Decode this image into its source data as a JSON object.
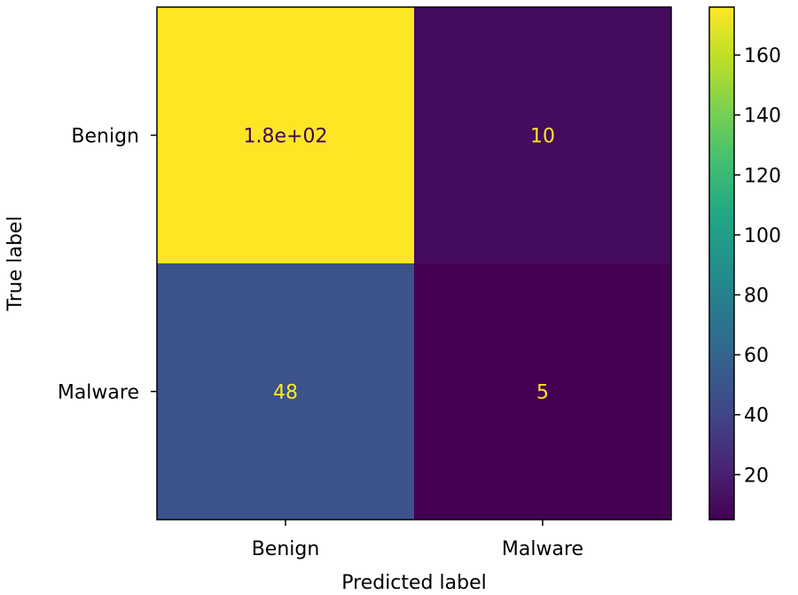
{
  "chart_data": {
    "type": "heatmap",
    "xlabel": "Predicted label",
    "ylabel": "True label",
    "x_categories": [
      "Benign",
      "Malware"
    ],
    "y_categories": [
      "Benign",
      "Malware"
    ],
    "values": [
      [
        176,
        10
      ],
      [
        48,
        5
      ]
    ],
    "cell_labels": [
      [
        "1.8e+02",
        "10"
      ],
      [
        "48",
        "5"
      ]
    ],
    "colormap": "viridis",
    "cell_text_colors": [
      [
        "#440154",
        "#fde725"
      ],
      [
        "#fde725",
        "#fde725"
      ]
    ],
    "colorbar": {
      "range": [
        5,
        176
      ],
      "ticks": [
        20,
        40,
        60,
        80,
        100,
        120,
        140,
        160
      ]
    }
  }
}
